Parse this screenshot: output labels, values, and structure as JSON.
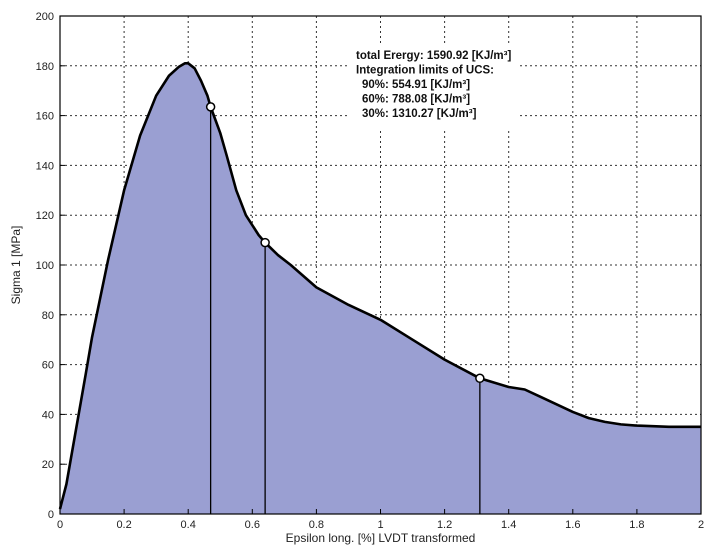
{
  "chart_data": {
    "type": "area",
    "xlabel": "Epsilon long. [%] LVDT transformed",
    "ylabel": "Sigma 1 [MPa]",
    "xlim": [
      0,
      2
    ],
    "ylim": [
      0,
      200
    ],
    "xticks": [
      "0",
      "0.2",
      "0.4",
      "0.6",
      "0.8",
      "1",
      "1.2",
      "1.4",
      "1.6",
      "1.8",
      "2"
    ],
    "yticks": [
      "0",
      "20",
      "40",
      "60",
      "80",
      "100",
      "120",
      "140",
      "160",
      "180",
      "200"
    ],
    "grid": true,
    "fill_color": "#9a9fd2",
    "line_color": "#000000",
    "series": [
      {
        "x": [
          0,
          0.02,
          0.05,
          0.08,
          0.1,
          0.15,
          0.2,
          0.25,
          0.3,
          0.34,
          0.37,
          0.39,
          0.4,
          0.42,
          0.44,
          0.46,
          0.47,
          0.5,
          0.52,
          0.55,
          0.58,
          0.62,
          0.64,
          0.68,
          0.72,
          0.8,
          0.9,
          1.0,
          1.1,
          1.2,
          1.31,
          1.4,
          1.45,
          1.5,
          1.55,
          1.6,
          1.65,
          1.7,
          1.75,
          1.8,
          1.9,
          2.0
        ],
        "y": [
          2,
          12,
          34,
          56,
          71,
          102,
          130,
          152,
          168,
          176,
          179.5,
          181,
          181,
          179,
          174,
          168,
          163.5,
          153,
          144,
          130,
          120,
          112,
          109,
          104,
          100,
          91,
          84,
          78,
          70,
          62,
          54.5,
          51,
          50,
          47,
          44,
          41,
          38.5,
          37,
          36,
          35.5,
          35,
          35
        ]
      }
    ],
    "markers": [
      {
        "x": 0.47,
        "y": 163.5
      },
      {
        "x": 0.64,
        "y": 109
      },
      {
        "x": 1.31,
        "y": 54.5
      }
    ],
    "vlines": [
      0.47,
      0.64,
      1.31
    ],
    "annotations": [
      "total Erergy: 1590.92 [KJ/m³]",
      "Integration limits of UCS:",
      "90%: 554.91 [KJ/m³]",
      "60%: 788.08 [KJ/m³]",
      "30%: 1310.27 [KJ/m³]"
    ]
  }
}
